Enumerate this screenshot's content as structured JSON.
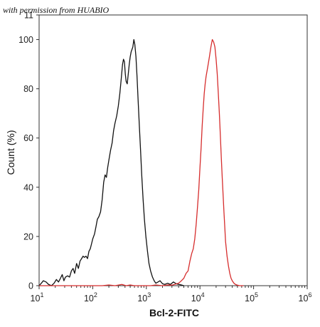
{
  "watermark": "with permission from HUABIO",
  "chart_data": {
    "type": "line",
    "title": "",
    "xlabel": "Bcl-2-FITC",
    "ylabel": "Count  (%)",
    "x_scale": "log",
    "xlim": [
      10,
      1000000
    ],
    "ylim": [
      0,
      110
    ],
    "x_ticks": [
      {
        "base": "10",
        "exp": "1",
        "value": 10
      },
      {
        "base": "10",
        "exp": "2",
        "value": 100
      },
      {
        "base": "10",
        "exp": "3",
        "value": 1000
      },
      {
        "base": "10",
        "exp": "4",
        "value": 10000
      },
      {
        "base": "10",
        "exp": "5",
        "value": 100000
      },
      {
        "base": "10",
        "exp": "6",
        "value": 1000000
      }
    ],
    "y_ticks": [
      0,
      20,
      40,
      60,
      80,
      100
    ],
    "y_top_partial_label": "11",
    "grid": false,
    "legend": "none",
    "series": [
      {
        "color": "#111111",
        "points": [
          [
            10,
            0
          ],
          [
            11,
            1
          ],
          [
            12,
            2
          ],
          [
            13.5,
            1.5
          ],
          [
            15,
            0.5
          ],
          [
            17,
            0
          ],
          [
            19,
            1
          ],
          [
            21,
            2.5
          ],
          [
            23,
            1.5
          ],
          [
            25,
            3
          ],
          [
            27,
            4.5
          ],
          [
            29,
            2
          ],
          [
            31,
            3.5
          ],
          [
            34,
            4
          ],
          [
            37,
            3.5
          ],
          [
            40,
            6
          ],
          [
            43,
            7
          ],
          [
            46,
            5
          ],
          [
            50,
            9
          ],
          [
            54,
            7
          ],
          [
            58,
            10
          ],
          [
            62,
            11
          ],
          [
            66,
            12
          ],
          [
            70,
            11.5
          ],
          [
            75,
            12
          ],
          [
            80,
            11
          ],
          [
            85,
            14
          ],
          [
            90,
            15
          ],
          [
            95,
            17
          ],
          [
            100,
            19
          ],
          [
            108,
            21
          ],
          [
            115,
            24
          ],
          [
            122,
            27
          ],
          [
            130,
            28
          ],
          [
            140,
            30
          ],
          [
            150,
            35
          ],
          [
            160,
            42
          ],
          [
            170,
            45
          ],
          [
            180,
            44
          ],
          [
            190,
            48
          ],
          [
            200,
            51
          ],
          [
            215,
            55
          ],
          [
            230,
            58
          ],
          [
            245,
            63
          ],
          [
            260,
            66
          ],
          [
            280,
            69
          ],
          [
            300,
            73
          ],
          [
            320,
            78
          ],
          [
            340,
            84
          ],
          [
            360,
            90
          ],
          [
            375,
            92
          ],
          [
            390,
            91
          ],
          [
            405,
            86
          ],
          [
            420,
            83
          ],
          [
            440,
            82
          ],
          [
            460,
            86
          ],
          [
            480,
            90
          ],
          [
            500,
            93
          ],
          [
            520,
            95
          ],
          [
            540,
            96
          ],
          [
            560,
            97
          ],
          [
            585,
            100
          ],
          [
            610,
            98
          ],
          [
            640,
            93
          ],
          [
            670,
            85
          ],
          [
            700,
            76
          ],
          [
            740,
            65
          ],
          [
            780,
            55
          ],
          [
            820,
            45
          ],
          [
            870,
            35
          ],
          [
            920,
            27
          ],
          [
            980,
            20
          ],
          [
            1050,
            14
          ],
          [
            1120,
            9
          ],
          [
            1200,
            6
          ],
          [
            1300,
            3.5
          ],
          [
            1400,
            2
          ],
          [
            1500,
            1
          ],
          [
            1650,
            1.5
          ],
          [
            1800,
            2
          ],
          [
            2000,
            0.8
          ],
          [
            2200,
            0.5
          ],
          [
            2500,
            1
          ],
          [
            2800,
            0.5
          ],
          [
            3200,
            1.5
          ],
          [
            3600,
            0.8
          ],
          [
            4000,
            0.5
          ],
          [
            4500,
            0.3
          ],
          [
            5000,
            0
          ]
        ]
      },
      {
        "color": "#d62d2d",
        "points": [
          [
            10,
            0
          ],
          [
            100,
            0
          ],
          [
            150,
            0
          ],
          [
            200,
            0.3
          ],
          [
            260,
            0
          ],
          [
            350,
            0.5
          ],
          [
            420,
            0
          ],
          [
            500,
            0.3
          ],
          [
            600,
            0
          ],
          [
            800,
            0
          ],
          [
            1000,
            0
          ],
          [
            1200,
            0
          ],
          [
            1500,
            0.3
          ],
          [
            2000,
            0
          ],
          [
            2500,
            0.3
          ],
          [
            3000,
            0.2
          ],
          [
            3500,
            0.6
          ],
          [
            4000,
            1
          ],
          [
            4500,
            2
          ],
          [
            5000,
            3
          ],
          [
            5500,
            5
          ],
          [
            6000,
            6
          ],
          [
            6500,
            10
          ],
          [
            7000,
            13
          ],
          [
            7500,
            15
          ],
          [
            8000,
            19
          ],
          [
            8500,
            25
          ],
          [
            9000,
            32
          ],
          [
            9500,
            39
          ],
          [
            10000,
            48
          ],
          [
            10500,
            56
          ],
          [
            11000,
            65
          ],
          [
            11500,
            72
          ],
          [
            12000,
            78
          ],
          [
            12500,
            82
          ],
          [
            13000,
            85
          ],
          [
            14000,
            89
          ],
          [
            15000,
            93
          ],
          [
            16000,
            97
          ],
          [
            17000,
            100
          ],
          [
            18000,
            99
          ],
          [
            19000,
            97
          ],
          [
            20000,
            92
          ],
          [
            21000,
            86
          ],
          [
            22000,
            78
          ],
          [
            23000,
            70
          ],
          [
            24000,
            61
          ],
          [
            25000,
            52
          ],
          [
            26000,
            44
          ],
          [
            27000,
            37
          ],
          [
            28000,
            30
          ],
          [
            29000,
            24
          ],
          [
            30000,
            18
          ],
          [
            32000,
            12
          ],
          [
            34000,
            8
          ],
          [
            36000,
            5
          ],
          [
            38000,
            3
          ],
          [
            40000,
            2
          ],
          [
            43000,
            1
          ],
          [
            46000,
            0.5
          ],
          [
            50000,
            0.2
          ],
          [
            55000,
            0
          ],
          [
            65000,
            0
          ]
        ]
      }
    ]
  }
}
